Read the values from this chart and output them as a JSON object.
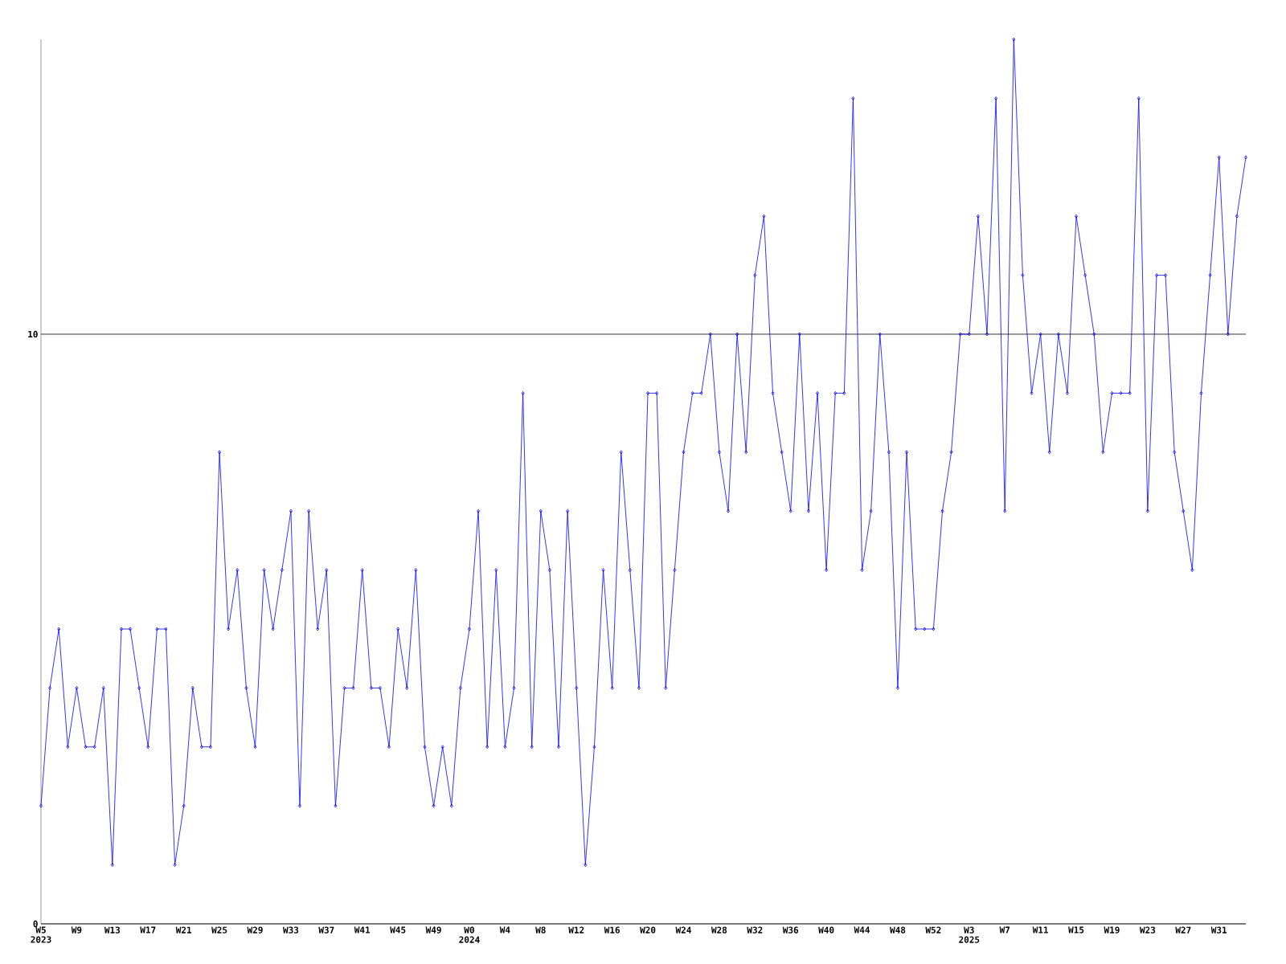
{
  "chart_data": {
    "type": "line",
    "categories": [
      "W5 2023",
      null,
      null,
      null,
      "W9",
      null,
      null,
      null,
      "W13",
      null,
      null,
      null,
      "W17",
      null,
      null,
      null,
      "W21",
      null,
      null,
      null,
      "W25",
      null,
      null,
      null,
      "W29",
      null,
      null,
      null,
      "W33",
      null,
      null,
      null,
      "W37",
      null,
      null,
      null,
      "W41",
      null,
      null,
      null,
      "W45",
      null,
      null,
      null,
      "W49",
      null,
      null,
      null,
      "W0 2024",
      null,
      null,
      null,
      "W4",
      null,
      null,
      null,
      "W8",
      null,
      null,
      null,
      "W12",
      null,
      null,
      null,
      "W16",
      null,
      null,
      null,
      "W20",
      null,
      null,
      null,
      "W24",
      null,
      null,
      null,
      "W28",
      null,
      null,
      null,
      "W32",
      null,
      null,
      null,
      "W36",
      null,
      null,
      null,
      "W40",
      null,
      null,
      null,
      "W44",
      null,
      null,
      null,
      "W48",
      null,
      null,
      null,
      "W52",
      null,
      null,
      null,
      "W3 2025",
      null,
      null,
      null,
      "W7",
      null,
      null,
      null,
      "W11",
      null,
      null,
      null,
      "W15",
      null,
      null,
      null,
      "W19",
      null,
      null,
      null,
      "W23",
      null,
      null,
      null,
      "W27",
      null,
      null,
      null,
      "W31",
      null,
      null,
      null
    ],
    "values": [
      2,
      4,
      5,
      3,
      4,
      3,
      3,
      4,
      1,
      5,
      5,
      4,
      3,
      5,
      5,
      1,
      2,
      4,
      3,
      3,
      8,
      5,
      6,
      4,
      3,
      6,
      5,
      6,
      7,
      2,
      7,
      5,
      6,
      2,
      4,
      4,
      6,
      4,
      4,
      3,
      5,
      4,
      6,
      3,
      2,
      3,
      2,
      4,
      5,
      7,
      3,
      6,
      3,
      4,
      9,
      3,
      7,
      6,
      3,
      7,
      4,
      1,
      3,
      6,
      4,
      8,
      6,
      4,
      9,
      9,
      4,
      6,
      8,
      9,
      9,
      10,
      8,
      7,
      10,
      8,
      11,
      12,
      9,
      8,
      7,
      10,
      7,
      9,
      6,
      9,
      9,
      14,
      6,
      7,
      10,
      8,
      4,
      8,
      5,
      5,
      5,
      7,
      8,
      10,
      10,
      12,
      10,
      14,
      7,
      15,
      11,
      9,
      10,
      8,
      10,
      9,
      12,
      11,
      10,
      8,
      9,
      9,
      9,
      14,
      7,
      11,
      11,
      8,
      7,
      6,
      9,
      11,
      13,
      10,
      12,
      13
    ],
    "color": "#0000ff",
    "ylim": [
      0,
      15
    ],
    "yticks": [
      0,
      10
    ],
    "grid": "y",
    "marker": "diamond",
    "line_style": "solid"
  }
}
